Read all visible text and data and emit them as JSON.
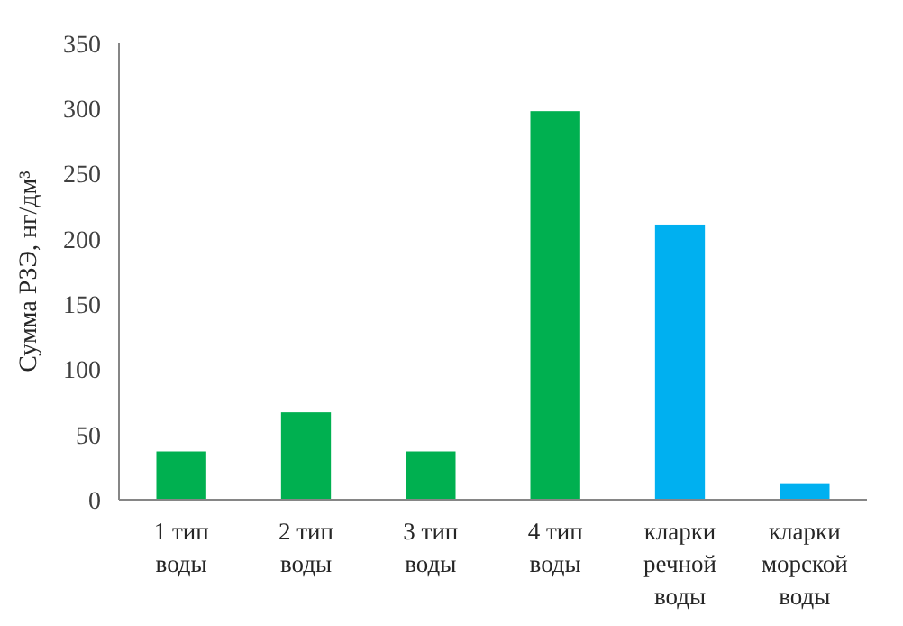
{
  "chart_data": {
    "type": "bar",
    "ylabel": "Сумма РЗЭ, нг/дм³",
    "categories": [
      "1 тип воды",
      "2 тип воды",
      "3 тип воды",
      "4 тип воды",
      "кларки речной воды",
      "кларки морской воды"
    ],
    "values": [
      37,
      67,
      37,
      298,
      211,
      12
    ],
    "colors": [
      "#00b050",
      "#00b050",
      "#00b050",
      "#00b050",
      "#00b0f0",
      "#00b0f0"
    ],
    "ylim": [
      0,
      350
    ],
    "yticks": [
      0,
      50,
      100,
      150,
      200,
      250,
      300,
      350
    ],
    "grid": false
  }
}
